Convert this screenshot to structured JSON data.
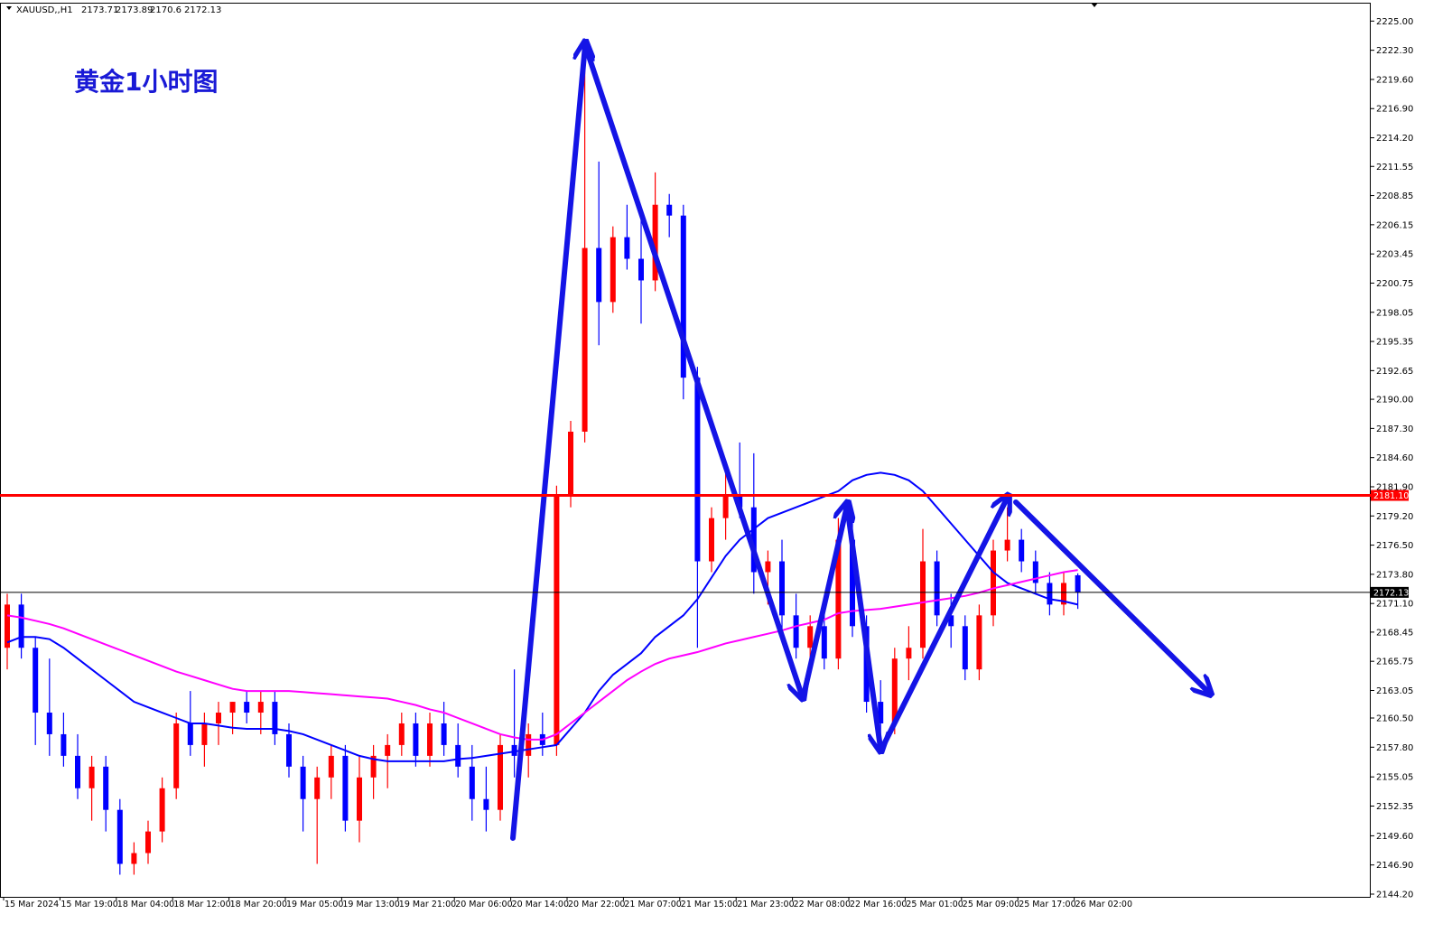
{
  "chart_data": {
    "type": "candlestick",
    "symbol": "XAUUSD,,H1",
    "title": "黄金1小时图",
    "up_color": "#ff0000",
    "down_color": "#0000ff",
    "ylim": [
      2143.95,
      2226.7
    ],
    "yticks": [
      {
        "value": 2144.2,
        "label": "2144.20"
      },
      {
        "value": 2146.9,
        "label": "2146.90"
      },
      {
        "value": 2149.6,
        "label": "2149.60"
      },
      {
        "value": 2152.35,
        "label": "2152.35"
      },
      {
        "value": 2155.05,
        "label": "2155.05"
      },
      {
        "value": 2157.8,
        "label": "2157.80"
      },
      {
        "value": 2160.5,
        "label": "2160.50"
      },
      {
        "value": 2163.05,
        "label": "2163.05"
      },
      {
        "value": 2165.75,
        "label": "2165.75"
      },
      {
        "value": 2168.45,
        "label": "2168.45"
      },
      {
        "value": 2171.1,
        "label": "2171.10"
      },
      {
        "value": 2173.8,
        "label": "2173.80"
      },
      {
        "value": 2176.5,
        "label": "2176.50"
      },
      {
        "value": 2179.2,
        "label": "2179.20"
      },
      {
        "value": 2181.9,
        "label": "2181.90"
      },
      {
        "value": 2184.6,
        "label": "2184.60"
      },
      {
        "value": 2187.3,
        "label": "2187.30"
      },
      {
        "value": 2190,
        "label": "2190.00"
      },
      {
        "value": 2192.65,
        "label": "2192.65"
      },
      {
        "value": 2195.35,
        "label": "2195.35"
      },
      {
        "value": 2198.05,
        "label": "2198.05"
      },
      {
        "value": 2200.75,
        "label": "2200.75"
      },
      {
        "value": 2203.45,
        "label": "2203.45"
      },
      {
        "value": 2206.15,
        "label": "2206.15"
      },
      {
        "value": 2208.85,
        "label": "2208.85"
      },
      {
        "value": 2211.55,
        "label": "2211.55"
      },
      {
        "value": 2214.2,
        "label": "2214.20"
      },
      {
        "value": 2216.9,
        "label": "2216.90"
      },
      {
        "value": 2219.6,
        "label": "2219.60"
      },
      {
        "value": 2222.3,
        "label": "2222.30"
      },
      {
        "value": 2225,
        "label": "2225.00"
      }
    ],
    "hlines": [
      {
        "value": 2181.1,
        "label": "2181.10",
        "color": "#ff0000"
      },
      {
        "value": 2172.13,
        "label": "2172.13",
        "color": "#000000"
      }
    ],
    "categories": [
      "15 Mar 2024",
      null,
      null,
      null,
      "15 Mar 19:00",
      null,
      null,
      null,
      "18 Mar 04:00",
      null,
      null,
      null,
      "18 Mar 12:00",
      null,
      null,
      null,
      "18 Mar 20:00",
      null,
      null,
      null,
      "19 Mar 05:00",
      null,
      null,
      null,
      "19 Mar 13:00",
      null,
      null,
      null,
      "19 Mar 21:00",
      null,
      null,
      null,
      "20 Mar 06:00",
      null,
      null,
      null,
      "20 Mar 14:00",
      null,
      null,
      null,
      "20 Mar 22:00",
      null,
      null,
      null,
      "21 Mar 07:00",
      null,
      null,
      null,
      "21 Mar 15:00",
      null,
      null,
      null,
      "21 Mar 23:00",
      null,
      null,
      null,
      "22 Mar 08:00",
      null,
      null,
      null,
      "22 Mar 16:00",
      null,
      null,
      null,
      "25 Mar 01:00",
      null,
      null,
      null,
      "25 Mar 09:00",
      null,
      null,
      null,
      "25 Mar 17:00",
      null,
      null,
      null,
      "26 Mar 02:00"
    ],
    "candles": [
      [
        2167,
        2172,
        2165,
        2171
      ],
      [
        2171,
        2172,
        2166,
        2167
      ],
      [
        2167,
        2168,
        2158,
        2161
      ],
      [
        2161,
        2166,
        2157,
        2159
      ],
      [
        2159,
        2161,
        2156,
        2157
      ],
      [
        2157,
        2159,
        2153,
        2154
      ],
      [
        2154,
        2157,
        2151,
        2156
      ],
      [
        2156,
        2157,
        2150,
        2152
      ],
      [
        2152,
        2153,
        2146,
        2147
      ],
      [
        2147,
        2149,
        2146,
        2148
      ],
      [
        2148,
        2151,
        2147,
        2150
      ],
      [
        2150,
        2155,
        2149,
        2154
      ],
      [
        2154,
        2161,
        2153,
        2160
      ],
      [
        2160,
        2163,
        2157,
        2158
      ],
      [
        2158,
        2161,
        2156,
        2160
      ],
      [
        2160,
        2162,
        2158,
        2161
      ],
      [
        2161,
        2162,
        2159,
        2162
      ],
      [
        2162,
        2163,
        2160,
        2161
      ],
      [
        2161,
        2163,
        2159,
        2162
      ],
      [
        2162,
        2163,
        2158,
        2159
      ],
      [
        2159,
        2160,
        2155,
        2156
      ],
      [
        2156,
        2157,
        2150,
        2153
      ],
      [
        2153,
        2156,
        2147,
        2155
      ],
      [
        2155,
        2158,
        2153,
        2157
      ],
      [
        2157,
        2158,
        2150,
        2151
      ],
      [
        2151,
        2157,
        2149,
        2155
      ],
      [
        2155,
        2158,
        2153,
        2157
      ],
      [
        2157,
        2159,
        2154,
        2158
      ],
      [
        2158,
        2161,
        2157,
        2160
      ],
      [
        2160,
        2161,
        2156,
        2157
      ],
      [
        2157,
        2161,
        2156,
        2160
      ],
      [
        2160,
        2162,
        2157,
        2158
      ],
      [
        2158,
        2160,
        2155,
        2156
      ],
      [
        2156,
        2158,
        2151,
        2153
      ],
      [
        2153,
        2156,
        2150,
        2152
      ],
      [
        2152,
        2159,
        2151,
        2158
      ],
      [
        2158,
        2165,
        2155,
        2157
      ],
      [
        2157,
        2160,
        2155,
        2159
      ],
      [
        2159,
        2161,
        2157,
        2158
      ],
      [
        2158,
        2182,
        2157,
        2181
      ],
      [
        2181,
        2188,
        2180,
        2187
      ],
      [
        2187,
        2223,
        2186,
        2204
      ],
      [
        2204,
        2212,
        2195,
        2199
      ],
      [
        2199,
        2206,
        2198,
        2205
      ],
      [
        2205,
        2208,
        2202,
        2203
      ],
      [
        2203,
        2207,
        2197,
        2201
      ],
      [
        2201,
        2211,
        2200,
        2208
      ],
      [
        2208,
        2209,
        2205,
        2207
      ],
      [
        2207,
        2208,
        2190,
        2192
      ],
      [
        2192,
        2193,
        2167,
        2175
      ],
      [
        2175,
        2180,
        2174,
        2179
      ],
      [
        2179,
        2184,
        2177,
        2181
      ],
      [
        2181,
        2186,
        2179,
        2180
      ],
      [
        2180,
        2185,
        2172,
        2174
      ],
      [
        2174,
        2176,
        2171,
        2175
      ],
      [
        2175,
        2177,
        2168,
        2170
      ],
      [
        2170,
        2172,
        2166,
        2167
      ],
      [
        2167,
        2170,
        2165,
        2169
      ],
      [
        2169,
        2171,
        2165,
        2166
      ],
      [
        2166,
        2179,
        2165,
        2177
      ],
      [
        2177,
        2179,
        2168,
        2169
      ],
      [
        2169,
        2170,
        2161,
        2162
      ],
      [
        2162,
        2164,
        2158,
        2160
      ],
      [
        2160,
        2167,
        2159,
        2166
      ],
      [
        2166,
        2169,
        2164,
        2167
      ],
      [
        2167,
        2178,
        2166,
        2175
      ],
      [
        2175,
        2176,
        2169,
        2170
      ],
      [
        2170,
        2172,
        2167,
        2169
      ],
      [
        2169,
        2170,
        2164,
        2165
      ],
      [
        2165,
        2171,
        2164,
        2170
      ],
      [
        2170,
        2177,
        2169,
        2176
      ],
      [
        2176,
        2180,
        2175,
        2177
      ],
      [
        2177,
        2178,
        2174,
        2175
      ],
      [
        2175,
        2176,
        2172,
        2173
      ],
      [
        2173,
        2174,
        2170,
        2171
      ],
      [
        2171,
        2174,
        2170,
        2173
      ],
      [
        2173.71,
        2173.89,
        2170.6,
        2172.13
      ]
    ],
    "series": [
      {
        "color": "#0000ff",
        "values": [
          2167.5,
          2168,
          2168,
          2167.8,
          2167,
          2166,
          2165,
          2164,
          2163,
          2162,
          2161.5,
          2161,
          2160.5,
          2160,
          2160,
          2159.8,
          2159.6,
          2159.5,
          2159.5,
          2159.5,
          2159.3,
          2159,
          2158.5,
          2158,
          2157.5,
          2157,
          2156.7,
          2156.5,
          2156.5,
          2156.5,
          2156.5,
          2156.5,
          2156.7,
          2156.8,
          2157,
          2157.2,
          2157.4,
          2157.6,
          2157.8,
          2158,
          2159.5,
          2161,
          2163,
          2164.5,
          2165.5,
          2166.5,
          2168,
          2169,
          2170,
          2171.5,
          2173.5,
          2175.5,
          2177,
          2178,
          2179,
          2179.5,
          2180,
          2180.5,
          2181,
          2181.5,
          2182.5,
          2183,
          2183.2,
          2183,
          2182.5,
          2181.5,
          2180,
          2178.5,
          2177,
          2175.5,
          2174,
          2173,
          2172.5,
          2172,
          2171.5,
          2171.3,
          2171
        ]
      },
      {
        "color": "#ff00ff",
        "values": [
          2170,
          2169.8,
          2169.5,
          2169.2,
          2168.8,
          2168.3,
          2167.8,
          2167.3,
          2166.8,
          2166.3,
          2165.8,
          2165.3,
          2164.8,
          2164.4,
          2164,
          2163.6,
          2163.2,
          2163,
          2163,
          2163,
          2163,
          2162.9,
          2162.8,
          2162.7,
          2162.6,
          2162.5,
          2162.4,
          2162.3,
          2162,
          2161.7,
          2161.3,
          2161,
          2160.5,
          2160,
          2159.5,
          2159,
          2158.7,
          2158.5,
          2158.5,
          2159,
          2160,
          2161,
          2162,
          2163,
          2164,
          2164.8,
          2165.5,
          2166,
          2166.3,
          2166.6,
          2167,
          2167.4,
          2167.7,
          2168,
          2168.3,
          2168.6,
          2169,
          2169.3,
          2169.6,
          2170.2,
          2170.4,
          2170.5,
          2170.6,
          2170.8,
          2171,
          2171.2,
          2171.4,
          2171.6,
          2171.8,
          2172.1,
          2172.5,
          2172.8,
          2173.1,
          2173.4,
          2173.7,
          2174,
          2174.2
        ]
      }
    ]
  }
}
